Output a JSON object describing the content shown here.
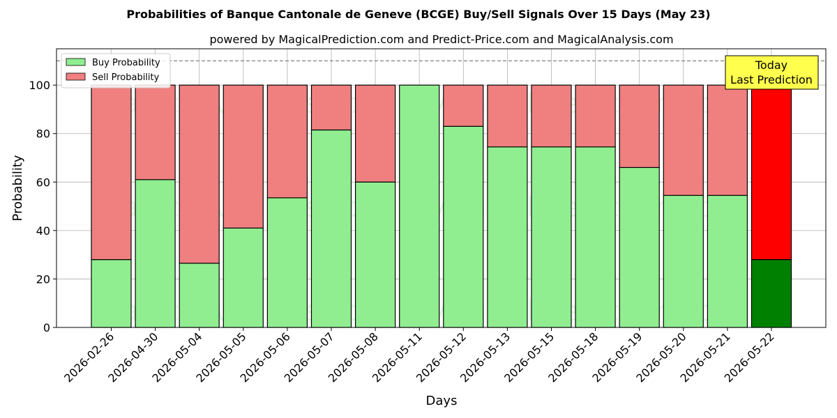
{
  "chart_data": {
    "type": "bar",
    "stacked": true,
    "title": "Probabilities of Banque Cantonale de Geneve (BCGE) Buy/Sell Signals Over 15 Days (May 23)",
    "subtitle": "powered by MagicalPrediction.com and Predict-Price.com and MagicalAnalysis.com",
    "xlabel": "Days",
    "ylabel": "Probability",
    "ylim": [
      0,
      115
    ],
    "yticks": [
      0,
      20,
      40,
      60,
      80,
      100
    ],
    "grid": true,
    "legend_position": "top-left",
    "reference_line": 110,
    "categories": [
      "2026-02-26",
      "2026-04-30",
      "2026-05-04",
      "2026-05-05",
      "2026-05-06",
      "2026-05-07",
      "2026-05-08",
      "2026-05-11",
      "2026-05-12",
      "2026-05-13",
      "2026-05-15",
      "2026-05-18",
      "2026-05-19",
      "2026-05-20",
      "2026-05-21",
      "2026-05-22"
    ],
    "series": [
      {
        "name": "Buy Probability",
        "color": "#90ee90",
        "highlight_color": "#008000",
        "values": [
          28,
          61,
          26.5,
          41,
          53.5,
          81.5,
          60,
          100,
          83,
          74.5,
          74.5,
          74.5,
          66,
          54.5,
          54.5,
          28
        ]
      },
      {
        "name": "Sell Probability",
        "color": "#f08080",
        "highlight_color": "#ff0000",
        "values": [
          72,
          39,
          73.5,
          59,
          46.5,
          18.5,
          40,
          0,
          17,
          25.5,
          25.5,
          25.5,
          34,
          45.5,
          45.5,
          72
        ]
      }
    ],
    "highlight_index": 15,
    "annotation": {
      "line1": "Today",
      "line2": "Last Prediction",
      "background": "#ffff4d"
    },
    "watermarks": [
      "MagicalAnalysis.com",
      "MagicalPrediction.com"
    ]
  }
}
